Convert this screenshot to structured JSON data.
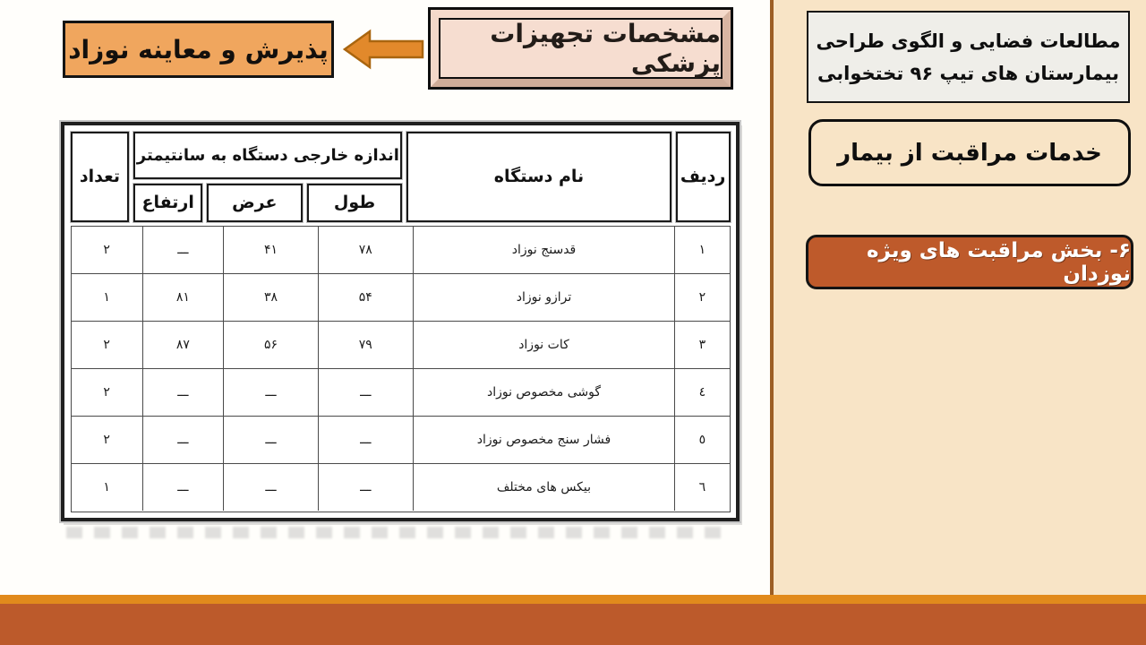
{
  "colors": {
    "sidebar_bg": "#F8E4C6",
    "sidebar_border": "#9C5E25",
    "strip_orange": "#E18A1C",
    "bottom_bar": "#BC5A2B",
    "section_box_bg": "#BE5A2B",
    "admission_box_bg": "#F0A65E",
    "arrow_fill": "#E2892B",
    "equipment_box_fill": "#F6DDD0",
    "title_box_bg": "#EFEEE9"
  },
  "sidebar": {
    "title_box": {
      "lines": [
        "مطالعات فضایی و الگوی طراحی",
        "بیمارستان های تیپ ۹۶ تختخوابی"
      ]
    },
    "services_box": {
      "label": "خدمات مراقبت از بیمار"
    },
    "section_box": {
      "label": "۶- بخش مراقبت های ویژه نوزدان"
    }
  },
  "header": {
    "equipment_box": {
      "label": "مشخصات تجهیزات پزشکی"
    },
    "admission_box": {
      "label": "پذیرش و معاینه نوزاد"
    },
    "arrow_icon": "left-arrow"
  },
  "table": {
    "columns": {
      "row": "ردیف",
      "device_name": "نام دستگاه",
      "size_group": "اندازه خارجی دستگاه به سانتیمتر",
      "length": "طول",
      "width": "عرض",
      "height": "ارتفاع",
      "count": "تعداد"
    },
    "rows": [
      {
        "no": "۱",
        "name": "قدسنج نوزاد",
        "length": "۷۸",
        "width": "۴۱",
        "height": "ـــ",
        "count": "۲"
      },
      {
        "no": "۲",
        "name": "ترازو نوزاد",
        "length": "۵۴",
        "width": "۳۸",
        "height": "۸۱",
        "count": "۱"
      },
      {
        "no": "۳",
        "name": "کات نوزاد",
        "length": "۷۹",
        "width": "۵۶",
        "height": "۸۷",
        "count": "۲"
      },
      {
        "no": "٤",
        "name": "گوشی مخصوص نوزاد",
        "length": "ـــ",
        "width": "ـــ",
        "height": "ـــ",
        "count": "۲"
      },
      {
        "no": "٥",
        "name": "فشار سنج مخصوص نوزاد",
        "length": "ـــ",
        "width": "ـــ",
        "height": "ـــ",
        "count": "۲"
      },
      {
        "no": "٦",
        "name": "بیکس های مختلف",
        "length": "ـــ",
        "width": "ـــ",
        "height": "ـــ",
        "count": "۱"
      }
    ]
  }
}
